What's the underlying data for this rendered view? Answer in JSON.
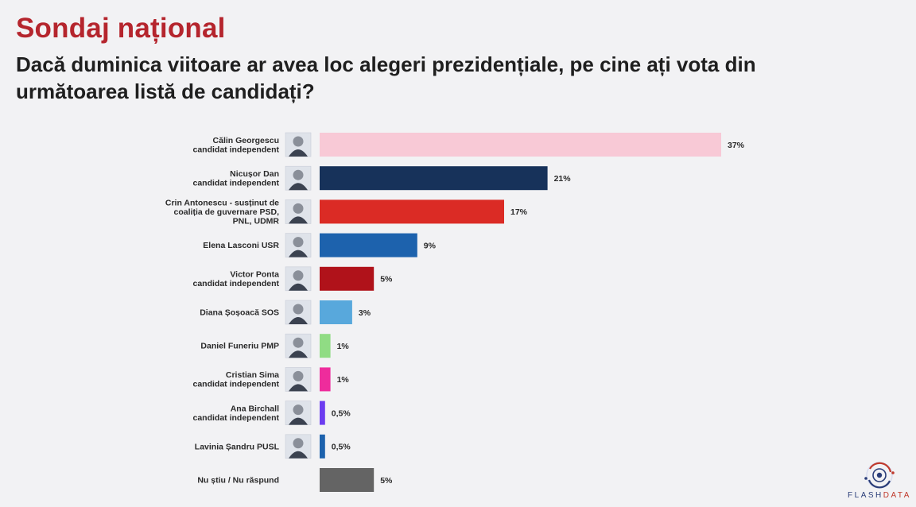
{
  "header": {
    "title": "Sondaj național",
    "subtitle": "Dacă duminica viitoare ar avea loc alegeri prezidențiale, pe cine ați vota din următoarea listă de candidați?"
  },
  "chart_data": {
    "type": "bar",
    "orientation": "horizontal",
    "title": "Dacă duminica viitoare ar avea loc alegeri prezidențiale, pe cine ați vota din următoarea listă de candidați?",
    "xlabel": "",
    "ylabel": "",
    "xlim": [
      0,
      37
    ],
    "grid": false,
    "unit": "%",
    "categories": [
      [
        "Călin Georgescu",
        "candidat independent"
      ],
      [
        "Nicușor Dan",
        "candidat independent"
      ],
      [
        "Crin Antonescu - susținut de",
        "coaliția de guvernare PSD,",
        "PNL, UDMR"
      ],
      [
        "Elena Lasconi USR"
      ],
      [
        "Victor Ponta",
        "candidat independent"
      ],
      [
        "Diana Șoșoacă SOS"
      ],
      [
        "Daniel Funeriu PMP"
      ],
      [
        "Cristian Sima",
        "candidat independent"
      ],
      [
        "Ana Birchall",
        "candidat independent"
      ],
      [
        "Lavinia Șandru PUSL"
      ],
      [
        "Nu știu / Nu răspund"
      ]
    ],
    "values": [
      37,
      21,
      17,
      9,
      5,
      3,
      1,
      1,
      0.5,
      0.5,
      5
    ],
    "value_labels": [
      "37%",
      "21%",
      "17%",
      "9%",
      "5%",
      "3%",
      "1%",
      "1%",
      "0,5%",
      "0,5%",
      "5%"
    ],
    "colors": [
      "#f8c9d6",
      "#17325a",
      "#db2b25",
      "#1d62ad",
      "#b0121a",
      "#58a8dc",
      "#90dc84",
      "#ee2c9c",
      "#6c3cf0",
      "#1d62ad",
      "#646464"
    ],
    "photos": [
      true,
      true,
      true,
      true,
      true,
      true,
      true,
      true,
      true,
      true,
      false
    ]
  },
  "logo": {
    "name_main": "FLASH",
    "name_accent": "DATA"
  }
}
